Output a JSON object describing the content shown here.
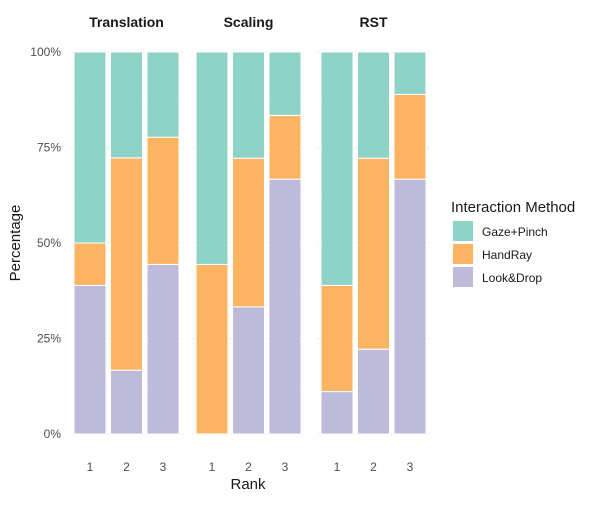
{
  "chart_data": {
    "type": "bar",
    "stacked": true,
    "facets": [
      "Translation",
      "Scaling",
      "RST"
    ],
    "categories": [
      "1",
      "2",
      "3"
    ],
    "xlabel": "Rank",
    "ylabel": "Percentage",
    "ylim": [
      0,
      100
    ],
    "yticks": [
      "0%",
      "25%",
      "50%",
      "75%",
      "100%"
    ],
    "grid": true,
    "legend": {
      "title": "Interaction Method",
      "placement": "right"
    },
    "series": [
      {
        "name": "Look&Drop",
        "color": "#bebada",
        "values": {
          "Translation": [
            38.9,
            16.7,
            44.4
          ],
          "Scaling": [
            0,
            33.3,
            66.7
          ],
          "RST": [
            11.1,
            22.2,
            66.7
          ]
        }
      },
      {
        "name": "HandRay",
        "color": "#fdb462",
        "values": {
          "Translation": [
            11.1,
            55.6,
            33.3
          ],
          "Scaling": [
            44.4,
            38.9,
            16.7
          ],
          "RST": [
            27.8,
            50.0,
            22.2
          ]
        }
      },
      {
        "name": "Gaze+Pinch",
        "color": "#8dd3c7",
        "values": {
          "Translation": [
            50.0,
            27.7,
            22.3
          ],
          "Scaling": [
            55.6,
            27.8,
            16.6
          ],
          "RST": [
            61.1,
            27.8,
            11.1
          ]
        }
      }
    ],
    "legend_order": [
      "Gaze+Pinch",
      "HandRay",
      "Look&Drop"
    ]
  }
}
